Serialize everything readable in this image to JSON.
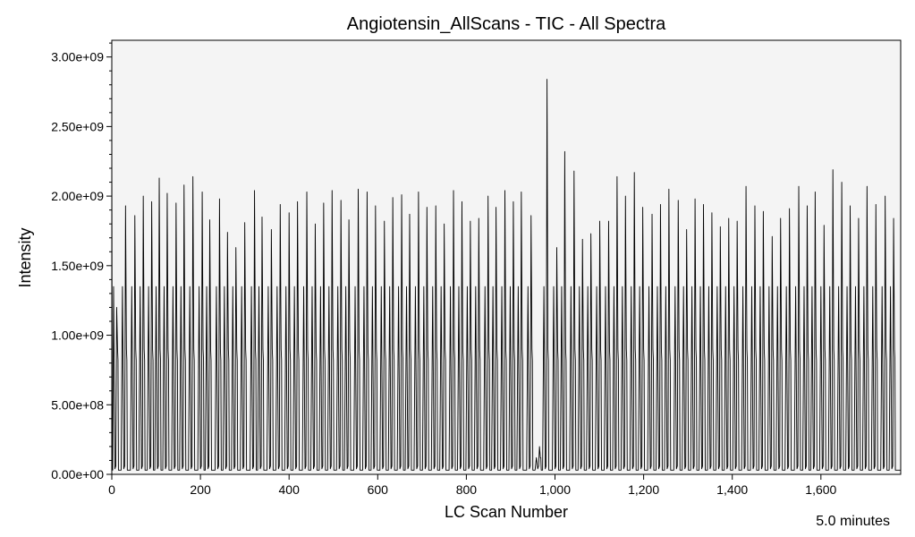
{
  "chart_data": {
    "type": "line",
    "title": "Angiotensin_AllScans - TIC - All Spectra",
    "xlabel": "LC Scan Number",
    "ylabel": "Intensity",
    "xlim": [
      0,
      1780
    ],
    "ylim": [
      0,
      3120000000.0
    ],
    "x_ticks": [
      {
        "value": 0,
        "label": "0"
      },
      {
        "value": 200,
        "label": "200"
      },
      {
        "value": 400,
        "label": "400"
      },
      {
        "value": 600,
        "label": "600"
      },
      {
        "value": 800,
        "label": "800"
      },
      {
        "value": 1000,
        "label": "1,000"
      },
      {
        "value": 1200,
        "label": "1,200"
      },
      {
        "value": 1400,
        "label": "1,400"
      },
      {
        "value": 1600,
        "label": "1,600"
      }
    ],
    "y_ticks": [
      {
        "value": 0,
        "label": "0.00e+00"
      },
      {
        "value": 500000000,
        "label": "5.00e+08"
      },
      {
        "value": 1000000000,
        "label": "1.00e+09"
      },
      {
        "value": 1500000000,
        "label": "1.50e+09"
      },
      {
        "value": 2000000000,
        "label": "2.00e+09"
      },
      {
        "value": 2500000000,
        "label": "2.50e+09"
      },
      {
        "value": 3000000000,
        "label": "3.00e+09"
      }
    ],
    "grid": false,
    "plot_background": "#f4f4f4",
    "line_color": "#000000",
    "baseline": 30000000,
    "cycle_points": [
      {
        "dx": 0,
        "y": 30000000
      },
      {
        "dx": 3,
        "y": 1350000000
      },
      {
        "dx": 6,
        "y": 40000000
      },
      {
        "dx": 8,
        "y": 60000000
      },
      {
        "dx": 10,
        "y": "peak"
      },
      {
        "dx": 12,
        "y": 900000000
      },
      {
        "dx": 13,
        "y": 820000000
      },
      {
        "dx": 14,
        "y": 30000000
      }
    ],
    "peak_positions": [
      11,
      31,
      52,
      71,
      90,
      107,
      125,
      145,
      163,
      183,
      204,
      221,
      243,
      261,
      280,
      300,
      322,
      339,
      360,
      380,
      400,
      419,
      440,
      459,
      478,
      497,
      517,
      535,
      556,
      576,
      595,
      615,
      634,
      654,
      672,
      692,
      711,
      731,
      750,
      771,
      790,
      809,
      828,
      849,
      867,
      887,
      906,
      924,
      946,
      965,
      982,
      1004,
      1022,
      1043,
      1062,
      1081,
      1101,
      1121,
      1140,
      1159,
      1179,
      1198,
      1219,
      1238,
      1257,
      1278,
      1297,
      1316,
      1335,
      1354,
      1373,
      1392,
      1411,
      1431,
      1451,
      1470,
      1490,
      1509,
      1529,
      1550,
      1569,
      1587,
      1607,
      1627,
      1647,
      1666,
      1685,
      1704,
      1724,
      1745,
      1764
    ],
    "peak_heights": [
      1200000000,
      1930000000,
      1860000000,
      2000000000,
      1960000000,
      2130000000,
      2020000000,
      1950000000,
      2080000000,
      2140000000,
      2030000000,
      1830000000,
      1980000000,
      1740000000,
      1630000000,
      1810000000,
      2040000000,
      1850000000,
      1760000000,
      1940000000,
      1880000000,
      1960000000,
      2030000000,
      1800000000,
      1950000000,
      2040000000,
      1970000000,
      1830000000,
      2050000000,
      2030000000,
      1930000000,
      1820000000,
      1990000000,
      2010000000,
      1870000000,
      2030000000,
      1920000000,
      1930000000,
      1800000000,
      2040000000,
      1960000000,
      1820000000,
      1840000000,
      2000000000,
      1920000000,
      2040000000,
      1960000000,
      2030000000,
      1860000000,
      200000000,
      2840000000,
      1630000000,
      2320000000,
      2180000000,
      1690000000,
      1730000000,
      1820000000,
      1820000000,
      2140000000,
      2000000000,
      2170000000,
      1920000000,
      1870000000,
      1940000000,
      2050000000,
      1970000000,
      1760000000,
      1980000000,
      1940000000,
      1880000000,
      1780000000,
      1840000000,
      1820000000,
      2070000000,
      1930000000,
      1890000000,
      1710000000,
      1840000000,
      1910000000,
      2070000000,
      1930000000,
      2030000000,
      1790000000,
      2190000000,
      2100000000,
      1930000000,
      1840000000,
      2070000000,
      1940000000,
      2000000000,
      1840000000
    ],
    "footer_note": "5.0 minutes"
  }
}
